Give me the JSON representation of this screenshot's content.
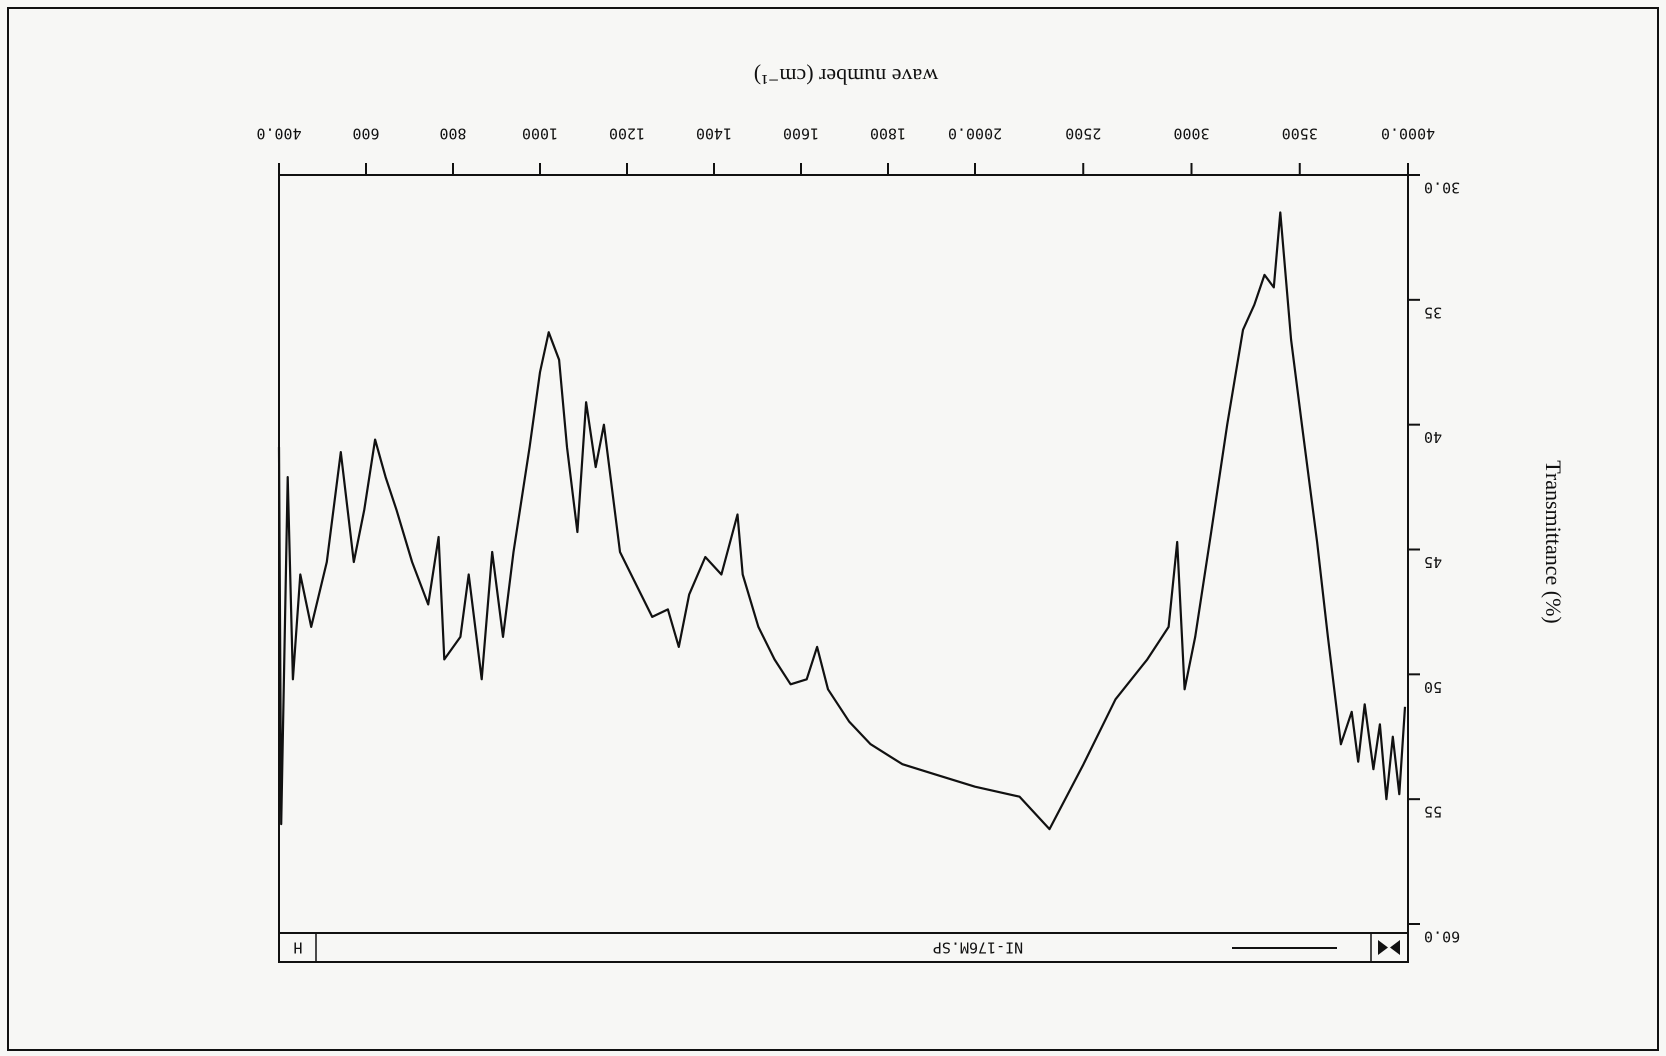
{
  "chart_data": {
    "type": "line",
    "title": "NI-176M.SP",
    "x_label": "wave number (cm⁻¹)",
    "y_label": "Transmittance (%)",
    "xlim": [
      4000,
      400
    ],
    "x_scale_break": 2000,
    "ylim": [
      30,
      60
    ],
    "xticks": [
      {
        "value": 4000,
        "label": "4000.0"
      },
      3500,
      3000,
      2500,
      {
        "value": 2000,
        "label": "2000.0"
      },
      1800,
      1600,
      1400,
      1200,
      1000,
      800,
      600,
      {
        "value": 400,
        "label": "400.0"
      }
    ],
    "yticks": [
      {
        "value": 30,
        "label": "30.0"
      },
      35,
      40,
      45,
      50,
      55,
      {
        "value": 60,
        "label": "60.0"
      }
    ],
    "series": [
      {
        "name": "NI-176M.SP",
        "color": "#111111",
        "x": [
          3986,
          3960,
          3930,
          3900,
          3870,
          3840,
          3800,
          3770,
          3740,
          3690,
          3630,
          3580,
          3510,
          3460,
          3410,
          3380,
          3337,
          3290,
          3238,
          3165,
          3091,
          3017,
          2968,
          2934,
          2894,
          2796,
          2649,
          2501,
          2344,
          2206,
          2000,
          1907,
          1833,
          1760,
          1711,
          1662,
          1637,
          1613,
          1576,
          1539,
          1502,
          1466,
          1454,
          1417,
          1380,
          1343,
          1319,
          1294,
          1258,
          1221,
          1184,
          1147,
          1128,
          1106,
          1086,
          1062,
          1044,
          1020,
          1000,
          976,
          939,
          915,
          890,
          866,
          836,
          817,
          780,
          767,
          743,
          706,
          670,
          645,
          621,
          596,
          572,
          542,
          510,
          474,
          449,
          432,
          420,
          405,
          400
        ],
        "values": [
          51.3,
          54.8,
          52.5,
          55.0,
          52.0,
          53.8,
          51.2,
          53.5,
          51.5,
          52.8,
          48.5,
          44.7,
          40.0,
          36.6,
          31.5,
          34.5,
          34.0,
          35.2,
          36.2,
          40.0,
          44.3,
          48.5,
          50.6,
          44.7,
          48.1,
          49.4,
          51.0,
          53.6,
          56.2,
          54.9,
          54.5,
          54.0,
          53.6,
          52.8,
          51.9,
          50.6,
          48.9,
          50.2,
          50.4,
          49.4,
          48.1,
          46.0,
          43.6,
          46.0,
          45.3,
          46.8,
          48.9,
          47.4,
          47.7,
          46.4,
          45.1,
          40.0,
          41.7,
          39.1,
          44.3,
          40.9,
          37.4,
          36.3,
          37.9,
          40.9,
          45.1,
          48.5,
          45.1,
          50.2,
          46.0,
          48.5,
          49.4,
          44.5,
          47.2,
          45.5,
          43.4,
          42.1,
          40.6,
          43.4,
          45.5,
          41.1,
          45.5,
          48.1,
          46.0,
          50.2,
          42.1,
          56.0,
          40.9
        ]
      }
    ]
  }
}
